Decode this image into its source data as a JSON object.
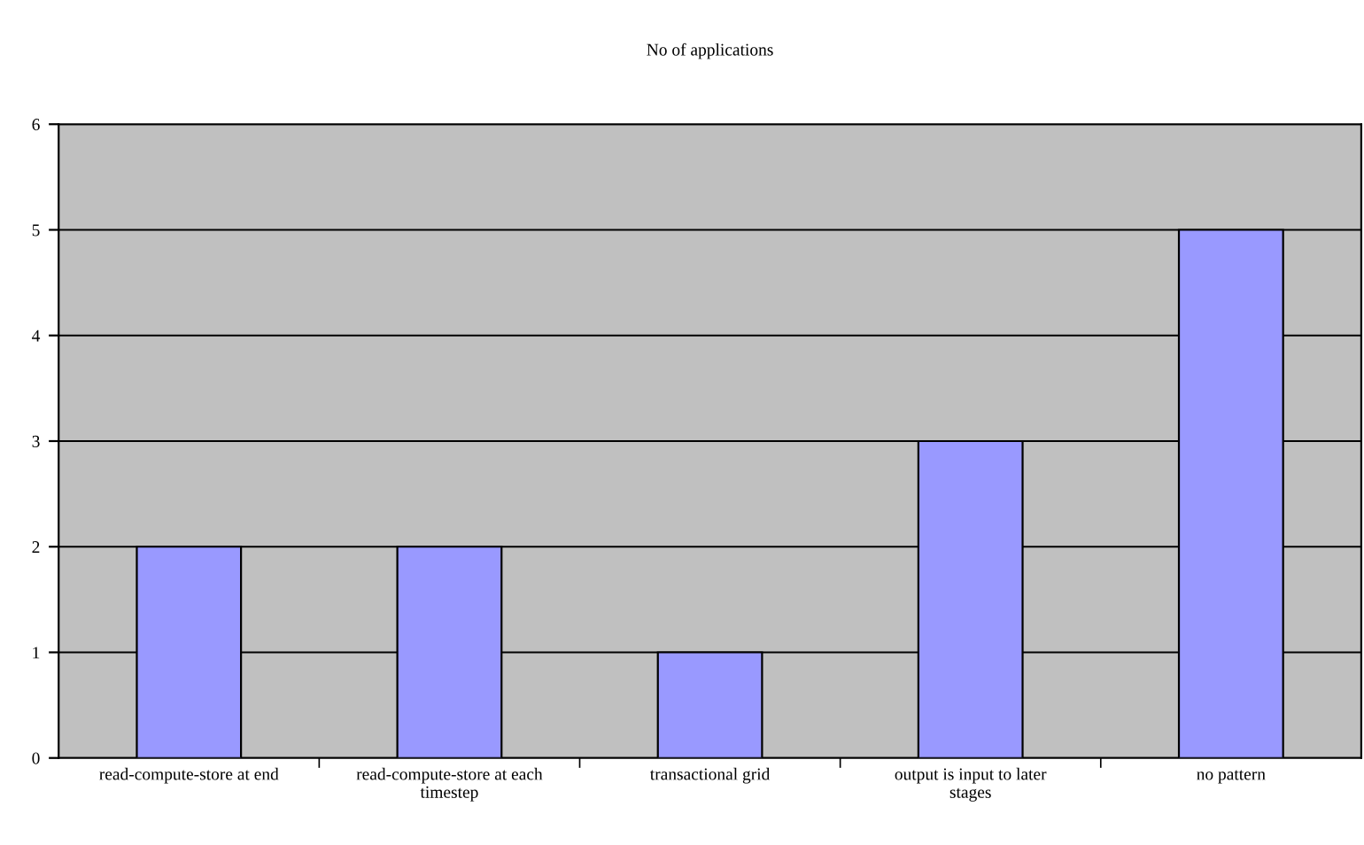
{
  "chart_data": {
    "type": "bar",
    "title": "No of applications",
    "categories": [
      "read-compute-store at end",
      "read-compute-store at each timestep",
      "transactional grid",
      "output is input to later stages",
      "no pattern"
    ],
    "values": [
      2,
      2,
      1,
      3,
      5
    ],
    "color": "#9999ff",
    "ylim": [
      0,
      6
    ],
    "yticks": [
      0,
      1,
      2,
      3,
      4,
      5,
      6
    ],
    "grid": "y",
    "legend": false
  }
}
